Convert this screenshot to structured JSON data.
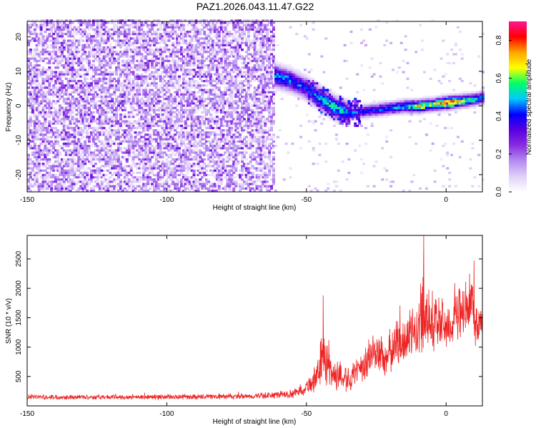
{
  "title": "PAZ1.2026.043.11.47.G22",
  "colors": {
    "snr_line": "#ee2222",
    "frame": "#000000",
    "colormap": [
      "#ffffff",
      "#e0d0f8",
      "#b48cf0",
      "#8a2be2",
      "#5a00e0",
      "#0000ff",
      "#00c8ff",
      "#00ff66",
      "#ffff00",
      "#ffa500",
      "#ff0000",
      "#ff1493"
    ]
  },
  "chart_data": [
    {
      "type": "heatmap",
      "title": "PAZ1.2026.043.11.47.G22",
      "xlabel": "Height of straight line (km)",
      "ylabel": "Frequency (Hz)",
      "xlim": [
        -150,
        13
      ],
      "ylim": [
        -25,
        24.5
      ],
      "xticks": [
        -150,
        -100,
        -50,
        0
      ],
      "xtick_labels": [
        "-150",
        "-100",
        "-50",
        "0"
      ],
      "yticks": [
        -20,
        -10,
        0,
        10,
        20
      ],
      "ytick_labels": [
        "-20",
        "-10",
        "0",
        "10",
        "20"
      ],
      "colorbar": {
        "label": "Normalized spectral amplitude",
        "range": [
          0,
          0.9
        ],
        "ticks": [
          0.0,
          0.2,
          0.4,
          0.6,
          0.8
        ],
        "tick_labels": [
          "0.0",
          "0.2",
          "0.4",
          "0.6",
          "0.8"
        ]
      },
      "signal_track": {
        "height_km": [
          -62,
          -56,
          -50,
          -45,
          -40,
          -35,
          -30,
          -25,
          -20,
          -15,
          -10,
          -5,
          0,
          5,
          10,
          13
        ],
        "frequency_hz": [
          8.5,
          7,
          4.5,
          1.5,
          -1,
          -2.5,
          -2,
          -1.5,
          -1,
          -0.5,
          -0.5,
          0,
          0.5,
          1,
          1.5,
          2
        ],
        "amplitude": [
          0.55,
          0.5,
          0.45,
          0.55,
          0.6,
          0.5,
          0.45,
          0.45,
          0.5,
          0.55,
          0.75,
          0.65,
          0.9,
          0.7,
          0.55,
          0.5
        ]
      },
      "noise_region_km": [
        -150,
        -62
      ]
    },
    {
      "type": "line",
      "xlabel": "Height of straight line (km)",
      "ylabel": "SNR (10 * v/v)",
      "xlim": [
        -150,
        13
      ],
      "ylim": [
        0,
        2900
      ],
      "xticks": [
        -150,
        -100,
        -50,
        0
      ],
      "xtick_labels": [
        "-150",
        "-100",
        "-50",
        "0"
      ],
      "yticks": [
        500,
        1000,
        1500,
        2000,
        2500
      ],
      "ytick_labels": [
        "500",
        "1000",
        "1500",
        "2000",
        "2500"
      ],
      "series": [
        {
          "name": "SNR",
          "envelope_height_km": [
            -150,
            -100,
            -70,
            -55,
            -50,
            -46,
            -44,
            -42,
            -40,
            -35,
            -30,
            -26,
            -22,
            -18,
            -14,
            -10,
            -8,
            -4,
            0,
            4,
            8,
            10,
            13
          ],
          "envelope_mean": [
            150,
            150,
            160,
            200,
            320,
            500,
            900,
            650,
            520,
            480,
            600,
            950,
            800,
            1050,
            1150,
            1300,
            1700,
            1400,
            1350,
            1500,
            1650,
            1500,
            1400
          ],
          "envelope_amplitude": [
            40,
            40,
            45,
            70,
            120,
            250,
            450,
            350,
            250,
            220,
            250,
            380,
            300,
            400,
            400,
            450,
            700,
            500,
            380,
            450,
            500,
            450,
            250
          ],
          "peaks": [
            {
              "height_km": -44,
              "value": 1880
            },
            {
              "height_km": -8,
              "value": 2900
            },
            {
              "height_km": 10,
              "value": 2470
            }
          ]
        }
      ]
    }
  ]
}
